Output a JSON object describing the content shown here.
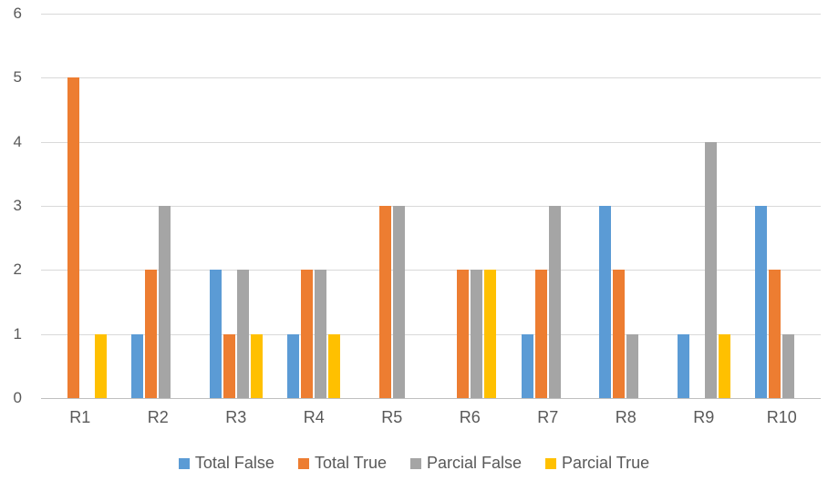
{
  "chart_data": {
    "type": "bar",
    "title": "",
    "xlabel": "",
    "ylabel": "",
    "categories": [
      "R1",
      "R2",
      "R3",
      "R4",
      "R5",
      "R6",
      "R7",
      "R8",
      "R9",
      "R10"
    ],
    "series": [
      {
        "name": "Total False",
        "color": "#5B9BD5",
        "values": [
          0,
          1,
          2,
          1,
          0,
          0,
          1,
          3,
          1,
          3
        ]
      },
      {
        "name": "Total True",
        "color": "#ED7D31",
        "values": [
          5,
          2,
          1,
          2,
          3,
          2,
          2,
          2,
          0,
          2
        ]
      },
      {
        "name": "Parcial False",
        "color": "#A5A5A5",
        "values": [
          0,
          3,
          2,
          2,
          3,
          2,
          3,
          1,
          4,
          1
        ]
      },
      {
        "name": "Parcial True",
        "color": "#FFC000",
        "values": [
          1,
          0,
          1,
          1,
          0,
          2,
          0,
          0,
          1,
          0
        ]
      }
    ],
    "ylim": [
      0,
      6
    ],
    "yticks": [
      0,
      1,
      2,
      3,
      4,
      5,
      6
    ],
    "grid": true,
    "legend_position": "bottom",
    "text_color": "#595959",
    "gridline_color": "#D9D9D9",
    "axis_line_color": "#BFBFBF",
    "background_color": "#FFFFFF"
  }
}
